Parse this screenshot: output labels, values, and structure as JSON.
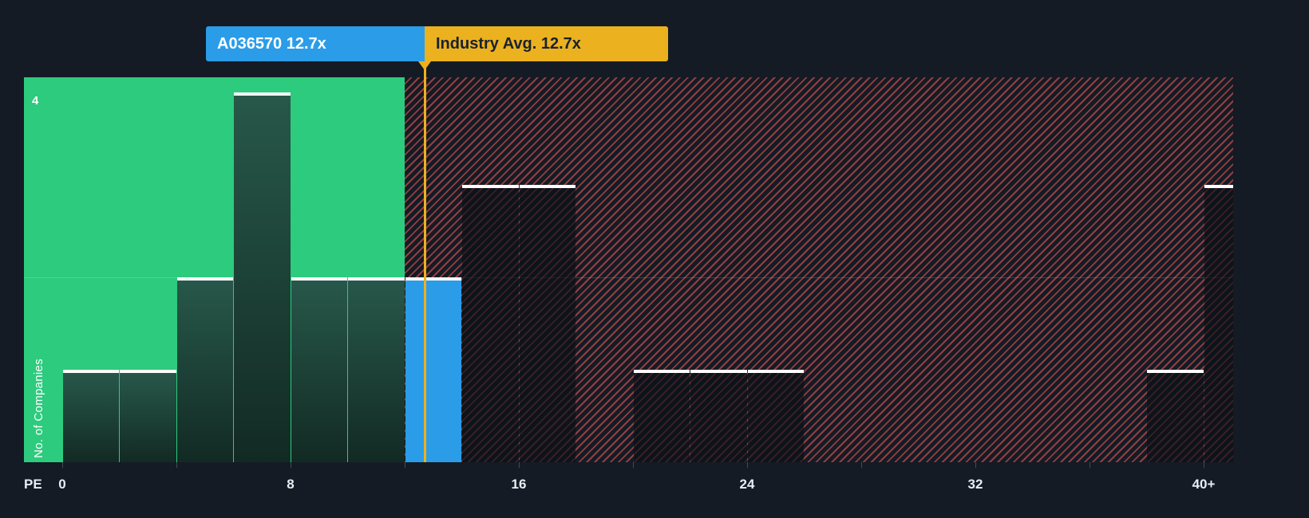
{
  "colors": {
    "bg": "#141b24",
    "green": "#2dcb7d",
    "blue": "#2b9ce8",
    "yellow": "#ecb11f",
    "red": "#e35454",
    "bar-top": "#ffffff",
    "axis-text": "#e7edf3",
    "yellow-text": "#182230"
  },
  "tooltips": {
    "company_label": "A036570 12.7x",
    "industry_label": "Industry Avg. 12.7x"
  },
  "axis": {
    "x_name": "PE",
    "y_label": "No. of Companies",
    "y_tick": "4"
  },
  "chart_data": {
    "type": "bar",
    "title": "PE ratio histogram: company vs industry",
    "xlabel": "PE",
    "ylabel": "No. of Companies",
    "x_tick_labels": [
      "0",
      "8",
      "16",
      "24",
      "32",
      "40+"
    ],
    "x_tick_values": [
      0,
      8,
      16,
      24,
      32,
      40
    ],
    "y_ticks_shown": [
      4
    ],
    "ylim": [
      0,
      4.2
    ],
    "xlim": [
      0,
      42
    ],
    "bucket_width_pe": 2,
    "fair_boundary_pe": 12,
    "company_pe": 12.7,
    "industry_avg_pe": 12.7,
    "company_tooltip": "A036570 12.7x",
    "industry_tooltip": "Industry Avg. 12.7x",
    "grid_levels": [
      2
    ],
    "buckets": [
      {
        "start": 0,
        "count": 1
      },
      {
        "start": 2,
        "count": 1
      },
      {
        "start": 4,
        "count": 2
      },
      {
        "start": 6,
        "count": 4
      },
      {
        "start": 8,
        "count": 2
      },
      {
        "start": 10,
        "count": 2
      },
      {
        "start": 12,
        "count": 2,
        "company": true
      },
      {
        "start": 14,
        "count": 3
      },
      {
        "start": 16,
        "count": 3
      },
      {
        "start": 18,
        "count": 0
      },
      {
        "start": 20,
        "count": 1
      },
      {
        "start": 22,
        "count": 1
      },
      {
        "start": 24,
        "count": 1
      },
      {
        "start": 26,
        "count": 0
      },
      {
        "start": 28,
        "count": 0
      },
      {
        "start": 30,
        "count": 0
      },
      {
        "start": 32,
        "count": 0
      },
      {
        "start": 34,
        "count": 0
      },
      {
        "start": 36,
        "count": 0
      },
      {
        "start": 38,
        "count": 1
      },
      {
        "start": 40,
        "count": 3,
        "clipped": true
      }
    ],
    "legend": [
      {
        "label": "A036570 12.7x",
        "color": "#2b9ce8"
      },
      {
        "label": "Industry Avg. 12.7x",
        "color": "#ecb11f"
      }
    ],
    "region_semantics": {
      "green": "below industry average PE",
      "red_hatched": "above industry average PE"
    }
  }
}
